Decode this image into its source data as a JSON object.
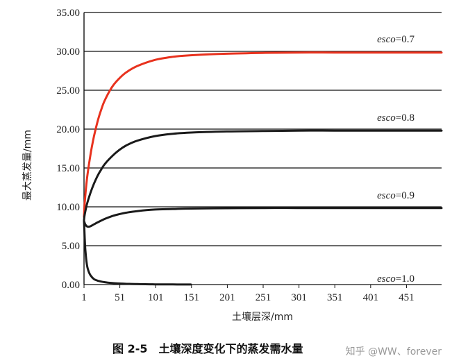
{
  "chart_data": {
    "type": "line",
    "title": "",
    "xlabel": "土壤层深/mm",
    "ylabel": "最大蒸发量/mm",
    "xlim": [
      1,
      500
    ],
    "ylim": [
      0,
      35
    ],
    "x_ticks": [
      "1",
      "51",
      "101",
      "151",
      "201",
      "251",
      "301",
      "351",
      "401",
      "451"
    ],
    "x_tick_values": [
      1,
      51,
      101,
      151,
      201,
      251,
      301,
      351,
      401,
      451
    ],
    "y_ticks": [
      "0.00",
      "5.00",
      "10.00",
      "15.00",
      "20.00",
      "25.00",
      "30.00",
      "35.00"
    ],
    "y_tick_values": [
      0,
      5,
      10,
      15,
      20,
      25,
      30,
      35
    ],
    "grid": "horizontal",
    "series": [
      {
        "name": "esco=0.7",
        "color": "#e8321e",
        "x": [
          1,
          2,
          5,
          10,
          15,
          20,
          25,
          30,
          40,
          50,
          60,
          75,
          100,
          125,
          150,
          200,
          250,
          300,
          350,
          400,
          450,
          500
        ],
        "values": [
          8.7,
          10.5,
          13.5,
          16.7,
          19.1,
          21.0,
          22.5,
          23.7,
          25.4,
          26.5,
          27.3,
          28.1,
          28.9,
          29.3,
          29.5,
          29.7,
          29.8,
          29.85,
          29.85,
          29.85,
          29.85,
          29.85
        ]
      },
      {
        "name": "esco=0.8",
        "color": "#1a1a1a",
        "x": [
          1,
          2,
          5,
          10,
          15,
          20,
          25,
          30,
          40,
          50,
          60,
          75,
          100,
          125,
          150,
          200,
          250,
          300,
          350,
          400,
          450,
          500
        ],
        "values": [
          8.3,
          9.0,
          10.3,
          11.8,
          13.0,
          14.0,
          14.8,
          15.5,
          16.5,
          17.3,
          17.9,
          18.5,
          19.1,
          19.4,
          19.55,
          19.7,
          19.75,
          19.8,
          19.8,
          19.8,
          19.8,
          19.8
        ]
      },
      {
        "name": "esco=0.9",
        "color": "#1a1a1a",
        "x": [
          1,
          3,
          6,
          10,
          15,
          20,
          30,
          40,
          50,
          60,
          75,
          100,
          125,
          150,
          200,
          250,
          300,
          350,
          400,
          450,
          500
        ],
        "values": [
          8.2,
          7.7,
          7.45,
          7.5,
          7.75,
          8.0,
          8.45,
          8.8,
          9.05,
          9.25,
          9.45,
          9.65,
          9.72,
          9.78,
          9.82,
          9.85,
          9.85,
          9.85,
          9.85,
          9.85,
          9.85
        ]
      },
      {
        "name": "esco=1.0",
        "color": "#1a1a1a",
        "x": [
          1,
          2,
          3,
          5,
          7,
          10,
          15,
          20,
          30,
          40,
          50,
          60,
          75,
          100,
          125,
          150
        ],
        "values": [
          8.2,
          6.0,
          4.3,
          2.6,
          1.8,
          1.2,
          0.7,
          0.5,
          0.3,
          0.2,
          0.14,
          0.1,
          0.06,
          0.03,
          0.02,
          0.01
        ]
      }
    ],
    "annotations": [
      {
        "text": "esco=0.7",
        "var": "esco",
        "rest": "=0.7",
        "y": 30.8
      },
      {
        "text": "esco=0.8",
        "var": "esco",
        "rest": "=0.8",
        "y": 20.7
      },
      {
        "text": "esco=0.9",
        "var": "esco",
        "rest": "=0.9",
        "y": 10.7
      },
      {
        "text": "esco=1.0",
        "var": "esco",
        "rest": "=1.0",
        "y": 0.0
      }
    ]
  },
  "caption": "图 2-5　土壤深度变化下的蒸发需水量",
  "watermark": "知乎 @WW、forever"
}
